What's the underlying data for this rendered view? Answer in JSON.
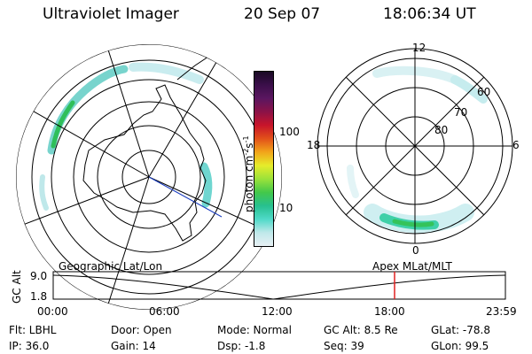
{
  "header": {
    "instrument": "Ultraviolet Imager",
    "date": "20 Sep 07",
    "time": "18:06:34 UT"
  },
  "colorbar": {
    "unit_label": "photon cm",
    "unit_sup1": "-2",
    "unit_mid": "s",
    "unit_sup2": "-1",
    "tick_100": "100",
    "tick_10": "10",
    "stops": [
      "#e8f0f4",
      "#bfe8ea",
      "#4fd9c8",
      "#27c08f",
      "#43c84a",
      "#9be23a",
      "#e6ec2a",
      "#f2a51a",
      "#e2511a",
      "#c8142a",
      "#8c1247",
      "#5b1660",
      "#3b0f4a",
      "#1a0a25"
    ]
  },
  "geo_map": {
    "labels": []
  },
  "mag_map": {
    "lt_12": "12",
    "lt_18": "18",
    "lt_6": "6",
    "lt_0": "0",
    "lat_60": "60",
    "lat_70": "70",
    "lat_80": "80"
  },
  "orbit_panel": {
    "left_label": "Geographic Lat/Lon",
    "right_label": "Apex MLat/MLT",
    "y_axis_title": "GC Alt",
    "y_tick_top": "9.0",
    "y_tick_bottom": "1.8",
    "x_ticks": [
      "00:00",
      "06:00",
      "12:00",
      "18:00",
      "23:59"
    ],
    "marker_color": "#e02020"
  },
  "info": {
    "flt": "Flt: LBHL",
    "ip": "IP: 36.0",
    "door": "Door: Open",
    "gain": "Gain: 14",
    "mode": "Mode: Normal",
    "dsp": "Dsp:   -1.8",
    "gcalt": "GC Alt: 8.5 Re",
    "seq": "Seq: 39",
    "glat": "GLat:  -78.8",
    "glon": "GLon:  99.5"
  }
}
